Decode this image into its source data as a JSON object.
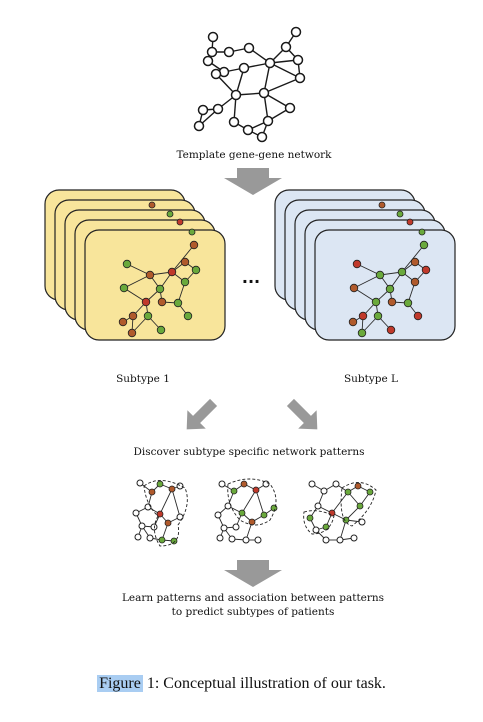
{
  "labels": {
    "template": "Template gene-gene network",
    "subtype_first": "Subtype 1",
    "subtype_last": "Subtype L",
    "ellipsis": "...",
    "discover": "Discover subtype specific network patterns",
    "learn_line1": "Learn patterns and association between patterns",
    "learn_line2": "to predict subtypes of patients"
  },
  "caption": {
    "figure_word": "Figure",
    "rest": " 1: Conceptual illustration of our task."
  },
  "colors": {
    "subtype_first_fill": "#f8e59b",
    "subtype_last_fill": "#dce6f3",
    "arrow": "#999999",
    "node_red": "#c0392b",
    "node_brown": "#b05a2c",
    "node_green": "#6aa93c",
    "highlight": "#a9cdf2"
  }
}
